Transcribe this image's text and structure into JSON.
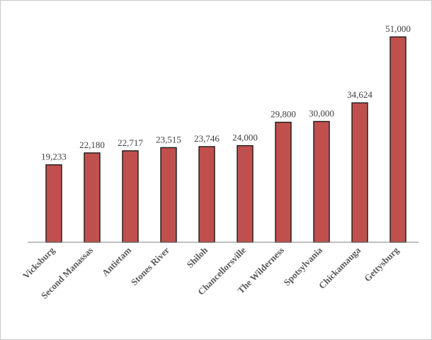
{
  "chart_data": {
    "type": "bar",
    "categories": [
      "Vicksburg",
      "Second Manassas",
      "Antietam",
      "Stones River",
      "Shiloh",
      "Chancellorsville",
      "The Wilderness",
      "Spotsylvania",
      "Chickamauga",
      "Gettysburg"
    ],
    "values": [
      19233,
      22180,
      22717,
      23515,
      23746,
      24000,
      29800,
      30000,
      34624,
      51000
    ],
    "value_labels": [
      "19,233",
      "22,180",
      "22,717",
      "23,515",
      "23,746",
      "24,000",
      "29,800",
      "30,000",
      "34,624",
      "51,000"
    ],
    "title": "",
    "xlabel": "",
    "ylabel": "",
    "ylim": [
      0,
      60000
    ],
    "grid": false,
    "legend": "none",
    "colors": {
      "bar": "#c0504d",
      "bar_outline": "#1a1a1a",
      "value_text": "#404040",
      "category_text": "#595959"
    }
  }
}
